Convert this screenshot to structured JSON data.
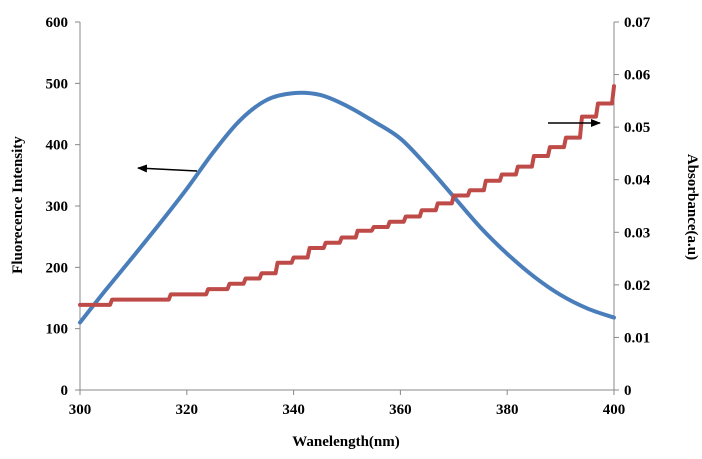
{
  "chart_data": {
    "type": "line",
    "title": "",
    "xlabel": "Wanelength(nm)",
    "ylabel": "Fluorecence Intensity",
    "y2label": "Absorbance(a.u)",
    "xlim": [
      300,
      400
    ],
    "ylim": [
      0,
      600
    ],
    "y2lim": [
      0,
      0.07
    ],
    "grid": false,
    "x_ticks": [
      "300",
      "320",
      "340",
      "360",
      "380",
      "400"
    ],
    "y_ticks": [
      "0",
      "100",
      "200",
      "300",
      "400",
      "500",
      "600"
    ],
    "y2_ticks": [
      "0",
      "0.01",
      "0.02",
      "0.03",
      "0.04",
      "0.05",
      "0.06",
      "0.07"
    ],
    "series": [
      {
        "name": "Fluorescence",
        "axis": "left",
        "color": "#4a7ebb",
        "x": [
          300,
          305,
          310,
          315,
          320,
          325,
          330,
          335,
          340,
          345,
          350,
          355,
          360,
          365,
          370,
          375,
          380,
          385,
          390,
          395,
          400
        ],
        "y": [
          110,
          165,
          218,
          272,
          328,
          388,
          440,
          473,
          484,
          481,
          463,
          438,
          410,
          365,
          315,
          265,
          222,
          185,
          155,
          133,
          118
        ]
      },
      {
        "name": "Absorbance",
        "axis": "right",
        "color": "#be4b48",
        "x": [
          300,
          303,
          306,
          309,
          313,
          317,
          320,
          324,
          328,
          331,
          334,
          337,
          340,
          343,
          346,
          349,
          352,
          355,
          358,
          361,
          364,
          367,
          370,
          373,
          376,
          379,
          382,
          385,
          388,
          391,
          394,
          397,
          400
        ],
        "y": [
          0.0162,
          0.0162,
          0.0172,
          0.0172,
          0.0172,
          0.0182,
          0.0182,
          0.0192,
          0.0202,
          0.0212,
          0.0222,
          0.0242,
          0.0252,
          0.027,
          0.028,
          0.029,
          0.0303,
          0.031,
          0.032,
          0.033,
          0.0342,
          0.0355,
          0.037,
          0.038,
          0.0398,
          0.041,
          0.0425,
          0.0445,
          0.0462,
          0.048,
          0.052,
          0.0545,
          0.0578
        ]
      }
    ],
    "annotations": [
      {
        "type": "arrow",
        "direction": "left",
        "points_to": "left axis",
        "series": "Fluorescence"
      },
      {
        "type": "arrow",
        "direction": "right",
        "points_to": "right axis",
        "series": "Absorbance"
      }
    ]
  }
}
